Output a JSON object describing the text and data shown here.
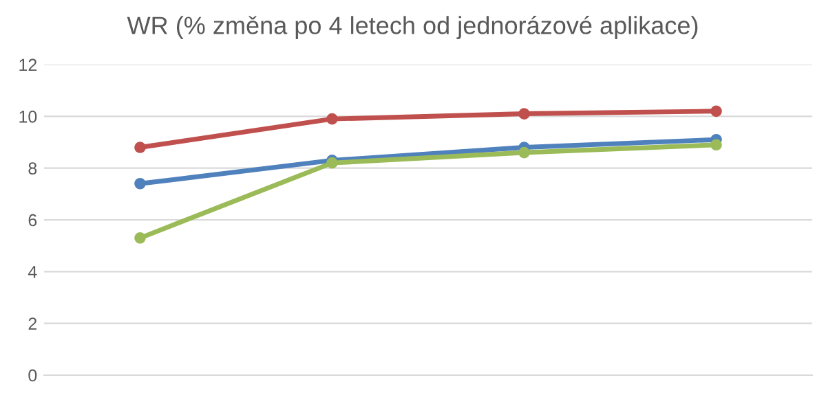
{
  "chart_data": {
    "type": "line",
    "title": "WR (% změna po 4 letech od jednorázové aplikace)",
    "categories": [
      null,
      null,
      null,
      null
    ],
    "series": [
      {
        "color": "#c0504d",
        "values": [
          8.8,
          9.9,
          10.1,
          10.2
        ]
      },
      {
        "color": "#4f81bd",
        "values": [
          7.4,
          8.3,
          8.8,
          9.1
        ]
      },
      {
        "color": "#9bbb59",
        "values": [
          5.3,
          8.2,
          8.6,
          8.9
        ]
      }
    ],
    "ylim": [
      0,
      12
    ],
    "yticks": [
      0,
      2,
      4,
      6,
      8,
      10,
      12
    ],
    "grid": "y",
    "marker": "circle",
    "line_style": "solid"
  }
}
